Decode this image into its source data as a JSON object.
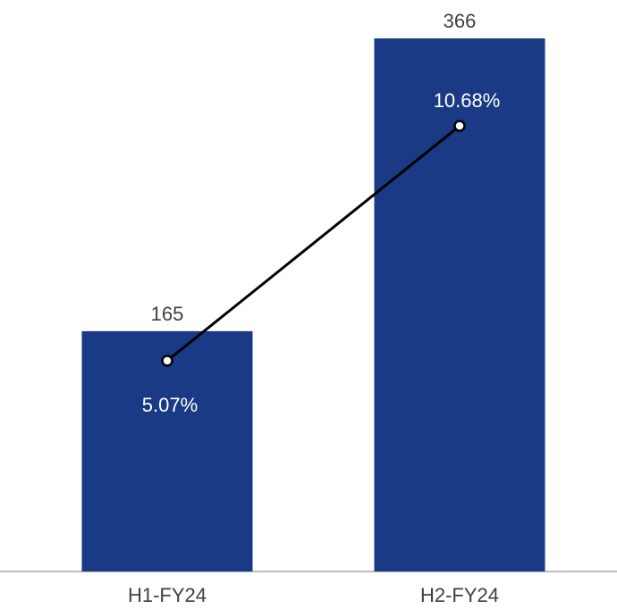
{
  "chart_data": {
    "type": "bar",
    "categories": [
      "H1-FY24",
      "H2-FY24"
    ],
    "series": [
      {
        "type": "bar",
        "values": [
          165,
          366
        ],
        "value_labels": [
          "165",
          "366"
        ],
        "color": "#1a3a85"
      },
      {
        "type": "line",
        "values": [
          5.07,
          10.68
        ],
        "value_labels": [
          "5.07%",
          "10.68%"
        ],
        "color": "#000000"
      }
    ],
    "title": "",
    "xlabel": "",
    "ylabel": "",
    "grid": false,
    "legend": "none"
  }
}
